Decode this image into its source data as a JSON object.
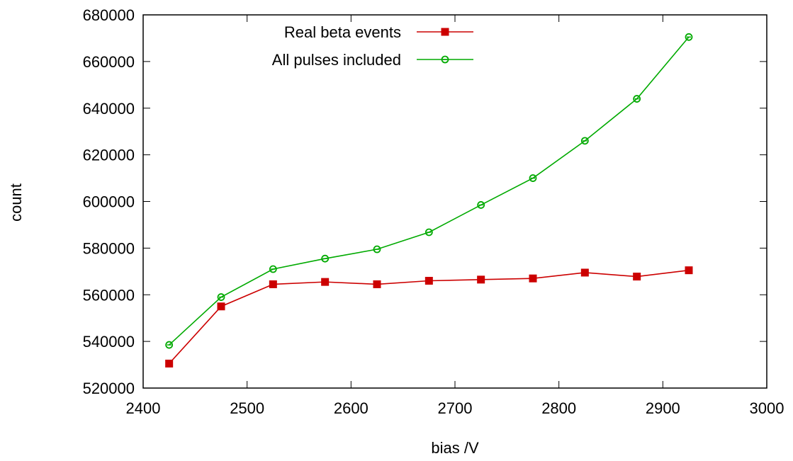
{
  "chart_data": {
    "type": "line",
    "xlabel": "bias /V",
    "ylabel": "count",
    "xlim": [
      2400,
      3000
    ],
    "ylim": [
      520000,
      680000
    ],
    "x_ticks": [
      2400,
      2500,
      2600,
      2700,
      2800,
      2900,
      3000
    ],
    "y_ticks": [
      520000,
      540000,
      560000,
      580000,
      600000,
      620000,
      640000,
      660000,
      680000
    ],
    "x_tick_labels": [
      "2400",
      "2500",
      "2600",
      "2700",
      "2800",
      "2900",
      "3000"
    ],
    "y_tick_labels": [
      "520000",
      "540000",
      "560000",
      "580000",
      "600000",
      "620000",
      "640000",
      "660000",
      "680000"
    ],
    "grid": false,
    "legend_position": "top-center",
    "x": [
      2425,
      2475,
      2525,
      2575,
      2625,
      2675,
      2725,
      2775,
      2825,
      2875,
      2925
    ],
    "series": [
      {
        "name": "Real beta events",
        "color": "#cc0000",
        "marker": "filled-square",
        "values": [
          530500,
          555000,
          564500,
          565500,
          564500,
          566000,
          566500,
          567000,
          569500,
          567800,
          570500
        ]
      },
      {
        "name": "All pulses included",
        "color": "#00aa00",
        "marker": "open-circle",
        "values": [
          538500,
          559000,
          571000,
          575500,
          579500,
          586800,
          598500,
          610000,
          626000,
          644000,
          670500
        ]
      }
    ]
  }
}
